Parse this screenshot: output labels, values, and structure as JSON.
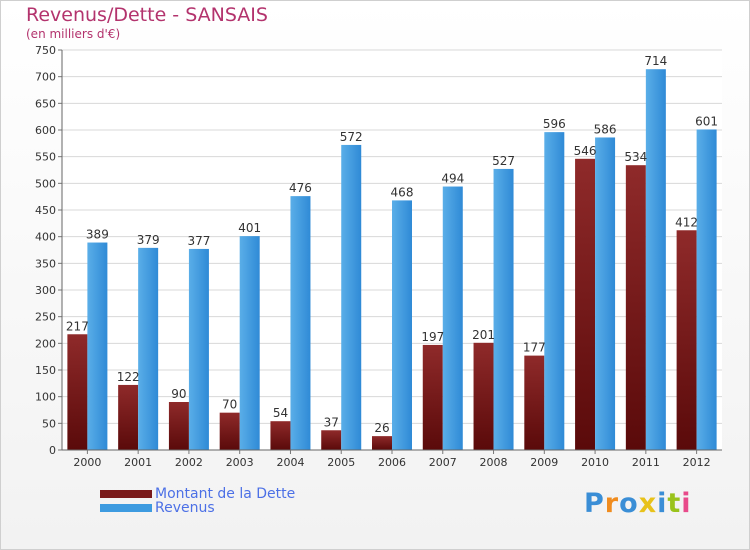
{
  "chart_data": {
    "type": "bar",
    "title": "Revenus/Dette - SANSAIS",
    "subtitle": "(en milliers d'€)",
    "categories": [
      "2000",
      "2001",
      "2002",
      "2003",
      "2004",
      "2005",
      "2006",
      "2007",
      "2008",
      "2009",
      "2010",
      "2011",
      "2012"
    ],
    "series": [
      {
        "name": "Montant de la Dette",
        "color": "#7a1a1a",
        "values": [
          217,
          122,
          90,
          70,
          54,
          37,
          26,
          197,
          201,
          177,
          546,
          534,
          412
        ]
      },
      {
        "name": "Revenus",
        "color": "#3d9be0",
        "values": [
          389,
          379,
          377,
          401,
          476,
          572,
          468,
          494,
          527,
          596,
          586,
          714,
          601
        ]
      }
    ],
    "ylim": [
      0,
      750
    ],
    "yticks": [
      0,
      50,
      100,
      150,
      200,
      250,
      300,
      350,
      400,
      450,
      500,
      550,
      600,
      650,
      700,
      750
    ],
    "grid": true,
    "legend_position": "bottom-left"
  },
  "logo": {
    "letters": [
      "P",
      "r",
      "o",
      "x",
      "i",
      "t",
      "i"
    ],
    "colors": [
      "#3a8ed6",
      "#f08c1e",
      "#3a8ed6",
      "#e8c21a",
      "#3a8ed6",
      "#9ac31c",
      "#e84a8a"
    ]
  }
}
